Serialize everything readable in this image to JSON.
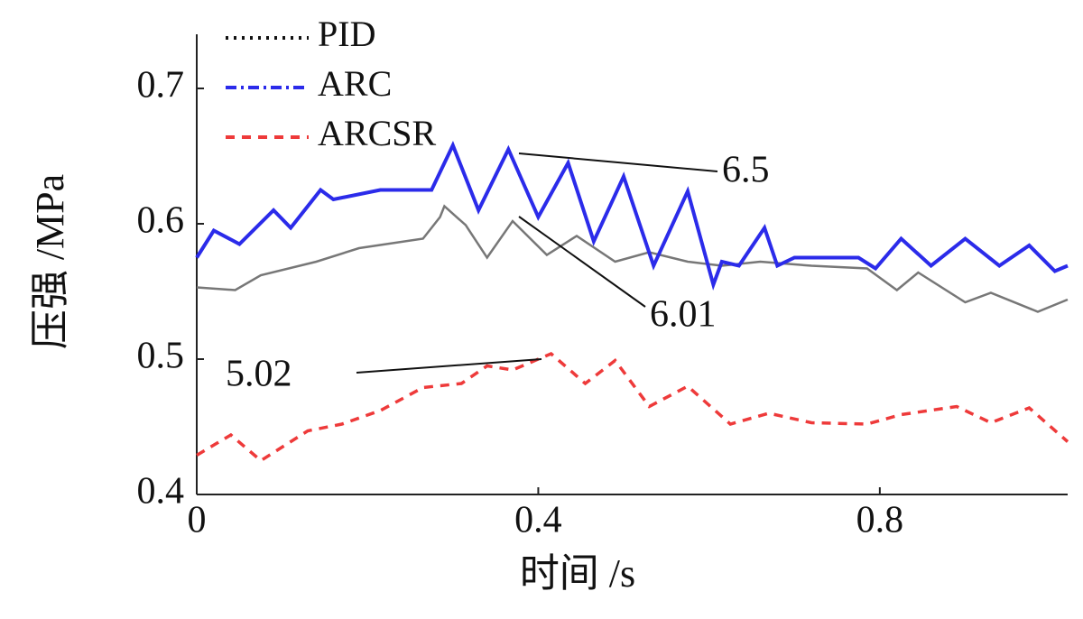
{
  "chart_data": {
    "type": "line",
    "xlabel": "时间 /s",
    "ylabel": "压强 /MPa",
    "xlim": [
      0,
      1.02
    ],
    "ylim": [
      0.4,
      0.74
    ],
    "xticks": [
      0,
      0.4,
      0.8
    ],
    "yticks": [
      0.4,
      0.5,
      0.6,
      0.7
    ],
    "legend": "top-left",
    "annotations": [
      "6.5",
      "6.01",
      "5.02"
    ],
    "series": [
      {
        "name": "PID",
        "color": "#777777",
        "dash": "dotted",
        "x": [
          0,
          0.045,
          0.075,
          0.14,
          0.19,
          0.265,
          0.285,
          0.29,
          0.315,
          0.34,
          0.37,
          0.41,
          0.445,
          0.49,
          0.53,
          0.575,
          0.615,
          0.66,
          0.72,
          0.785,
          0.82,
          0.845,
          0.9,
          0.93,
          0.985,
          1.02
        ],
        "values": [
          0.553,
          0.551,
          0.562,
          0.572,
          0.582,
          0.589,
          0.605,
          0.613,
          0.599,
          0.575,
          0.602,
          0.577,
          0.591,
          0.572,
          0.579,
          0.572,
          0.569,
          0.572,
          0.569,
          0.567,
          0.551,
          0.564,
          0.542,
          0.549,
          0.535,
          0.544
        ]
      },
      {
        "name": "ARC",
        "color": "#2b2bea",
        "dash": "dashdot",
        "x": [
          0,
          0.02,
          0.05,
          0.09,
          0.11,
          0.145,
          0.16,
          0.215,
          0.275,
          0.3,
          0.33,
          0.365,
          0.4,
          0.435,
          0.465,
          0.5,
          0.535,
          0.575,
          0.605,
          0.615,
          0.635,
          0.665,
          0.68,
          0.7,
          0.775,
          0.795,
          0.825,
          0.86,
          0.9,
          0.94,
          0.975,
          1.005,
          1.02
        ],
        "values": [
          0.575,
          0.595,
          0.585,
          0.61,
          0.597,
          0.625,
          0.618,
          0.625,
          0.625,
          0.658,
          0.61,
          0.655,
          0.605,
          0.645,
          0.587,
          0.635,
          0.569,
          0.624,
          0.555,
          0.572,
          0.569,
          0.597,
          0.569,
          0.575,
          0.575,
          0.567,
          0.589,
          0.569,
          0.589,
          0.569,
          0.584,
          0.565,
          0.569
        ]
      },
      {
        "name": "ARCSR",
        "color": "#ee3a3a",
        "dash": "dashed",
        "x": [
          0,
          0.04,
          0.075,
          0.13,
          0.17,
          0.215,
          0.265,
          0.31,
          0.34,
          0.37,
          0.415,
          0.455,
          0.49,
          0.53,
          0.575,
          0.625,
          0.67,
          0.72,
          0.785,
          0.825,
          0.89,
          0.93,
          0.975,
          1.02
        ],
        "values": [
          0.429,
          0.444,
          0.425,
          0.447,
          0.452,
          0.462,
          0.479,
          0.482,
          0.495,
          0.492,
          0.504,
          0.482,
          0.499,
          0.465,
          0.48,
          0.452,
          0.46,
          0.453,
          0.452,
          0.459,
          0.465,
          0.453,
          0.464,
          0.439
        ]
      }
    ]
  }
}
